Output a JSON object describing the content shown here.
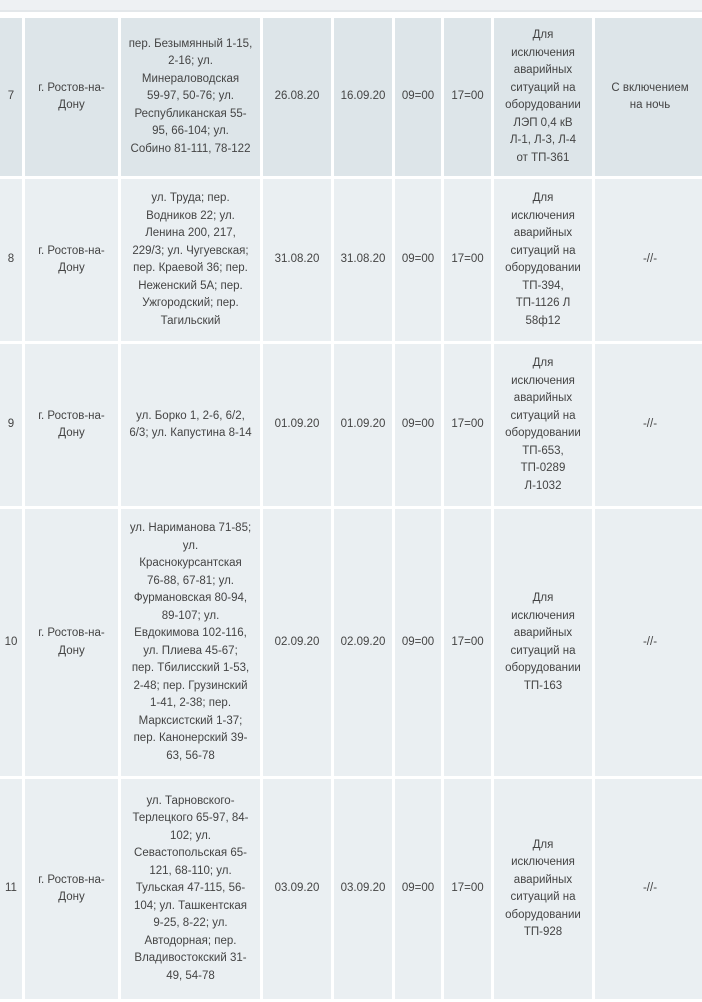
{
  "rows": [
    {
      "num": "7",
      "city": "г. Ростов-на-\nДону",
      "addr": "пер. Безымянный 1-15,\n2-16; ул.\nМинераловодская\n59-97, 50-76; ул.\nРеспубликанская 55-\n95, 66-104; ул.\nСобино 81-111, 78-122",
      "date_start": "26.08.20",
      "date_end": "16.09.20",
      "time_start": "09=00",
      "time_end": "17=00",
      "reason": "Для\nисключения\nаварийных\nситуаций на\nоборудовании\nЛЭП 0,4 кВ\nЛ-1, Л-3, Л-4\nот ТП-361",
      "note": "С включением\nна ночь"
    },
    {
      "num": "8",
      "city": "г. Ростов-на-\nДону",
      "addr": "ул. Труда; пер.\nВодников 22; ул.\nЛенина 200, 217,\n229/3; ул. Чугуевская;\nпер. Краевой 36; пер.\nНеженский 5А; пер.\nУжгородский; пер.\nТагильский",
      "date_start": "31.08.20",
      "date_end": "31.08.20",
      "time_start": "09=00",
      "time_end": "17=00",
      "reason": "Для\nисключения\nаварийных\nситуаций на\nоборудовании\nТП-394,\nТП-1126 Л\n58ф12",
      "note": "-//-"
    },
    {
      "num": "9",
      "city": "г. Ростов-на-\nДону",
      "addr": "ул. Борко 1, 2-6, 6/2,\n6/3; ул. Капустина 8-14",
      "date_start": "01.09.20",
      "date_end": "01.09.20",
      "time_start": "09=00",
      "time_end": "17=00",
      "reason": "Для\nисключения\nаварийных\nситуаций на\nоборудовании\nТП-653,\nТП-0289\nЛ-1032",
      "note": "-//-"
    },
    {
      "num": "10",
      "city": "г. Ростов-на-\nДону",
      "addr": "ул. Нариманова 71-85;\nул.\nКраснокурсантская\n76-88, 67-81; ул.\nФурмановская 80-94,\n89-107; ул.\nЕвдокимова 102-116,\nул. Плиева 45-67;\nпер. Тбилисский 1-53,\n2-48; пер. Грузинский\n1-41, 2-38; пер.\nМарксистский 1-37;\nпер. Канонерский 39-\n63, 56-78",
      "date_start": "02.09.20",
      "date_end": "02.09.20",
      "time_start": "09=00",
      "time_end": "17=00",
      "reason": "Для\nисключения\nаварийных\nситуаций на\nоборудовании\nТП-163",
      "note": "-//-"
    },
    {
      "num": "11",
      "city": "г. Ростов-на-\nДону",
      "addr": "ул. Тарновского-\nТерлецкого 65-97, 84-\n102; ул.\nСевастопольская 65-\n121, 68-110; ул.\nТульская 47-115, 56-\n104; ул. Ташкентская\n9-25, 8-22; ул.\nАвтодорная; пер.\nВладивостокский 31-\n49, 54-78",
      "date_start": "03.09.20",
      "date_end": "03.09.20",
      "time_start": "09=00",
      "time_end": "17=00",
      "reason": "Для\nисключения\nаварийных\nситуаций на\nоборудовании\nТП-928",
      "note": "-//-"
    }
  ]
}
